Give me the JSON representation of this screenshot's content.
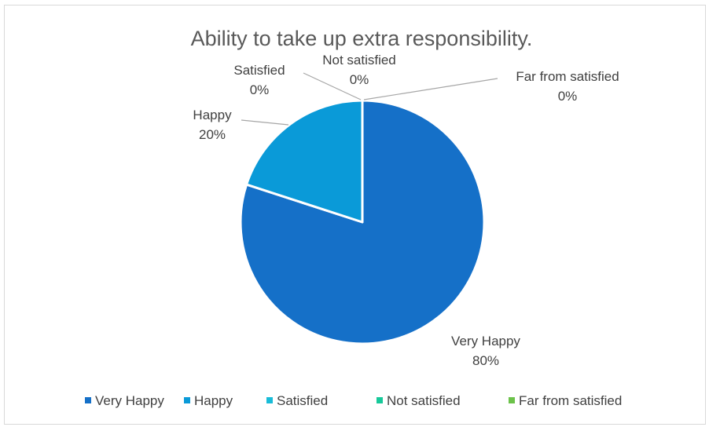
{
  "chart_data": {
    "type": "pie",
    "title": "Ability to take up extra responsibility.",
    "categories": [
      "Very Happy",
      "Happy",
      "Satisfied",
      "Not satisfied",
      "Far from satisfied"
    ],
    "values": [
      80,
      20,
      0,
      0,
      0
    ],
    "value_labels": [
      "80%",
      "20%",
      "0%",
      "0%",
      "0%"
    ],
    "colors": [
      "#1570c8",
      "#0a9ad8",
      "#19bcd8",
      "#17c99a",
      "#6cc24a"
    ],
    "leader_color": "#a6a6a6",
    "legend_position": "bottom",
    "data_labels": "category name and percentage, outside end with leader lines"
  }
}
